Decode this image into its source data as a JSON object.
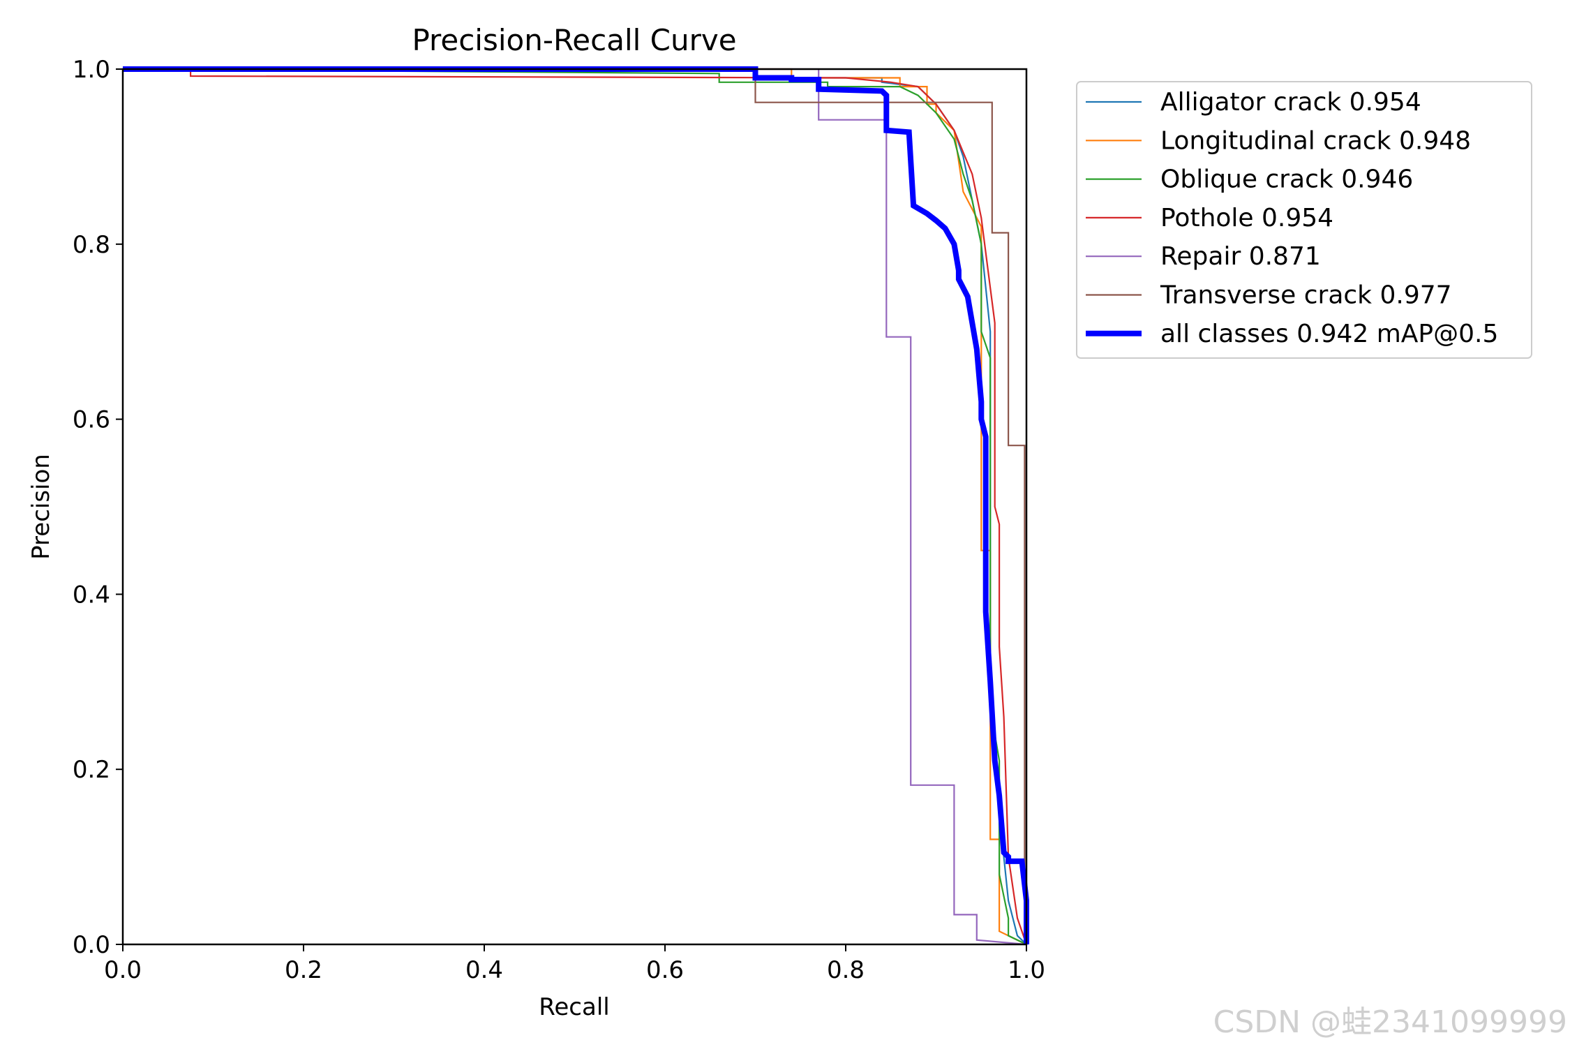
{
  "chart_data": {
    "type": "line",
    "title": "Precision-Recall Curve",
    "xlabel": "Recall",
    "ylabel": "Precision",
    "xlim": [
      0.0,
      1.0
    ],
    "ylim": [
      0.0,
      1.0
    ],
    "xticks": [
      "0.0",
      "0.2",
      "0.4",
      "0.6",
      "0.8",
      "1.0"
    ],
    "yticks": [
      "0.0",
      "0.2",
      "0.4",
      "0.6",
      "0.8",
      "1.0"
    ],
    "grid": false,
    "legend_position": "outside-top-right",
    "series": [
      {
        "name": "Alligator crack 0.954",
        "color": "#1f77b4",
        "emphasis": false,
        "x": [
          0.0,
          0.7,
          0.7,
          0.84,
          0.84,
          0.88,
          0.9,
          0.92,
          0.93,
          0.94,
          0.95,
          0.96,
          0.96,
          0.97,
          0.98,
          0.99,
          1.0
        ],
        "y": [
          1.0,
          1.0,
          0.99,
          0.99,
          0.985,
          0.98,
          0.96,
          0.93,
          0.9,
          0.85,
          0.8,
          0.7,
          0.3,
          0.15,
          0.05,
          0.01,
          0.0
        ]
      },
      {
        "name": "Longitudinal crack 0.948",
        "color": "#ff7f0e",
        "emphasis": false,
        "x": [
          0.0,
          0.74,
          0.74,
          0.86,
          0.86,
          0.89,
          0.89,
          0.9,
          0.9,
          0.92,
          0.93,
          0.94,
          0.95,
          0.95,
          0.96,
          0.96,
          0.97,
          0.97,
          0.99,
          1.0
        ],
        "y": [
          1.0,
          1.0,
          0.99,
          0.99,
          0.98,
          0.98,
          0.96,
          0.96,
          0.95,
          0.93,
          0.86,
          0.84,
          0.82,
          0.45,
          0.45,
          0.12,
          0.12,
          0.015,
          0.005,
          0.0
        ]
      },
      {
        "name": "Oblique crack 0.946",
        "color": "#2ca02c",
        "emphasis": false,
        "x": [
          0.0,
          0.66,
          0.66,
          0.78,
          0.78,
          0.86,
          0.88,
          0.9,
          0.92,
          0.93,
          0.94,
          0.95,
          0.95,
          0.96,
          0.96,
          0.97,
          0.97,
          0.98,
          0.98,
          1.0
        ],
        "y": [
          1.0,
          0.995,
          0.985,
          0.985,
          0.98,
          0.98,
          0.97,
          0.95,
          0.92,
          0.88,
          0.85,
          0.8,
          0.7,
          0.67,
          0.27,
          0.21,
          0.08,
          0.03,
          0.01,
          0.0
        ]
      },
      {
        "name": "Pothole 0.954",
        "color": "#d62728",
        "emphasis": false,
        "x": [
          0.0,
          0.075,
          0.075,
          0.8,
          0.85,
          0.88,
          0.9,
          0.92,
          0.94,
          0.95,
          0.96,
          0.965,
          0.965,
          0.97,
          0.97,
          0.975,
          0.98,
          0.99,
          1.0
        ],
        "y": [
          1.0,
          1.0,
          0.992,
          0.99,
          0.985,
          0.98,
          0.96,
          0.93,
          0.88,
          0.83,
          0.75,
          0.71,
          0.5,
          0.48,
          0.34,
          0.26,
          0.1,
          0.03,
          0.0
        ]
      },
      {
        "name": "Repair 0.871",
        "color": "#9467bd",
        "emphasis": false,
        "x": [
          0.0,
          0.77,
          0.77,
          0.845,
          0.845,
          0.872,
          0.872,
          0.92,
          0.92,
          0.945,
          0.945,
          1.0
        ],
        "y": [
          1.0,
          1.0,
          0.942,
          0.942,
          0.694,
          0.694,
          0.182,
          0.182,
          0.034,
          0.034,
          0.005,
          0.0
        ]
      },
      {
        "name": "Transverse crack 0.977",
        "color": "#8c564b",
        "emphasis": false,
        "x": [
          0.0,
          0.7,
          0.7,
          0.962,
          0.962,
          0.98,
          0.98,
          0.998,
          0.998,
          1.0
        ],
        "y": [
          1.0,
          1.0,
          0.962,
          0.962,
          0.813,
          0.813,
          0.57,
          0.57,
          0.0,
          0.0
        ]
      },
      {
        "name": "all classes 0.942 mAP@0.5",
        "color": "#0000ff",
        "emphasis": true,
        "x": [
          0.0,
          0.7,
          0.7,
          0.74,
          0.74,
          0.77,
          0.77,
          0.84,
          0.845,
          0.845,
          0.87,
          0.87,
          0.875,
          0.875,
          0.89,
          0.9,
          0.91,
          0.92,
          0.925,
          0.925,
          0.935,
          0.94,
          0.945,
          0.95,
          0.95,
          0.955,
          0.955,
          0.96,
          0.965,
          0.97,
          0.975,
          0.98,
          0.98,
          0.995,
          1.0,
          1.0
        ],
        "y": [
          1.0,
          1.0,
          0.99,
          0.99,
          0.988,
          0.988,
          0.977,
          0.975,
          0.97,
          0.93,
          0.928,
          0.928,
          0.844,
          0.844,
          0.835,
          0.827,
          0.818,
          0.8,
          0.77,
          0.76,
          0.74,
          0.71,
          0.68,
          0.62,
          0.6,
          0.58,
          0.38,
          0.3,
          0.21,
          0.17,
          0.105,
          0.1,
          0.095,
          0.095,
          0.05,
          0.0
        ]
      }
    ]
  },
  "watermark": "CSDN @蛙2341099999"
}
